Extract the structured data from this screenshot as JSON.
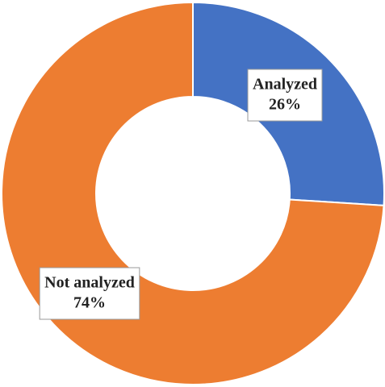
{
  "chart_data": {
    "type": "donut",
    "categories": [
      "Analyzed",
      "Not analyzed"
    ],
    "values": [
      26,
      74
    ],
    "value_labels": [
      "26%",
      "74%"
    ],
    "colors": [
      "#4472c4",
      "#ed7d31"
    ]
  }
}
